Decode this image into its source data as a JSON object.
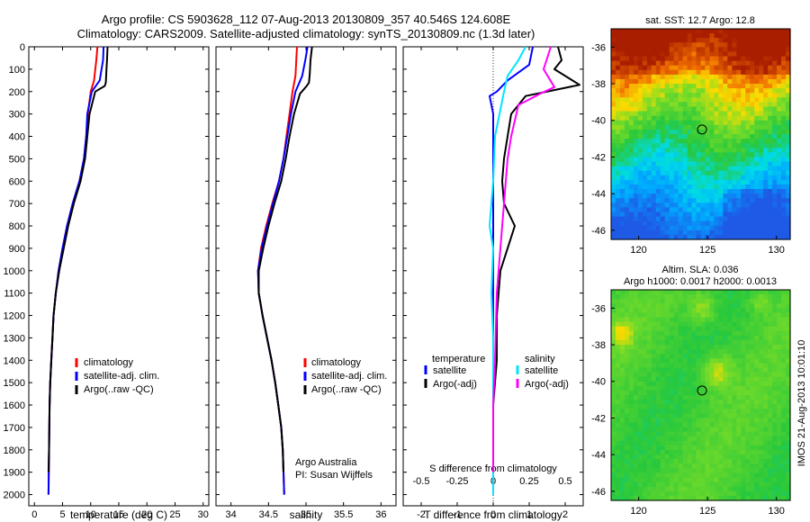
{
  "header": {
    "title_line1": "Argo profile: CS 5903628_112 07-Aug-2013 20130809_357 40.546S 124.608E",
    "title_line2": "Climatology: CARS2009. Satellite-adjusted climatology: synTS_20130809.nc (1.3d later)"
  },
  "side_label": "IMOS 21-Aug-2013 10:01:10",
  "colors": {
    "climatology": "#ff0000",
    "satellite": "#0000ff",
    "argo": "#000000",
    "sat_salinity": "#00e5ff",
    "argo_salinity_adj": "#ff00ff"
  },
  "chart_data": [
    {
      "name": "temperature-profile",
      "type": "line",
      "xlabel": "temperature (deg C)",
      "xlim": [
        -1,
        31
      ],
      "ylim": [
        0,
        2050
      ],
      "x_ticks": [
        0,
        5,
        10,
        15,
        20,
        25,
        30
      ],
      "y_ticks": [
        0,
        100,
        200,
        300,
        400,
        500,
        600,
        700,
        800,
        900,
        1000,
        1100,
        1200,
        1300,
        1400,
        1500,
        1600,
        1700,
        1800,
        1900,
        2000
      ],
      "legend": [
        "climatology",
        "satellite-adj. clim.",
        "Argo(..raw -QC)"
      ],
      "series": [
        {
          "name": "climatology",
          "color": "#ff0000",
          "points": [
            [
              11.2,
              0
            ],
            [
              11.0,
              60
            ],
            [
              10.6,
              150
            ],
            [
              10.0,
              200
            ],
            [
              9.5,
              300
            ],
            [
              9.2,
              400
            ],
            [
              8.8,
              500
            ],
            [
              8.0,
              600
            ],
            [
              6.8,
              700
            ],
            [
              5.8,
              800
            ],
            [
              5.0,
              900
            ],
            [
              4.3,
              1000
            ],
            [
              3.8,
              1100
            ],
            [
              3.4,
              1200
            ],
            [
              3.2,
              1300
            ],
            [
              3.0,
              1400
            ],
            [
              2.8,
              1500
            ],
            [
              2.7,
              1600
            ],
            [
              2.6,
              1800
            ],
            [
              2.5,
              2000
            ]
          ]
        },
        {
          "name": "satellite-adj. clim.",
          "color": "#0000ff",
          "points": [
            [
              12.3,
              0
            ],
            [
              12.2,
              60
            ],
            [
              11.6,
              150
            ],
            [
              10.2,
              200
            ],
            [
              9.4,
              300
            ],
            [
              9.2,
              400
            ],
            [
              8.8,
              500
            ],
            [
              8.0,
              600
            ],
            [
              6.8,
              700
            ],
            [
              5.8,
              800
            ],
            [
              5.0,
              900
            ],
            [
              4.3,
              1000
            ],
            [
              3.8,
              1100
            ],
            [
              3.4,
              1200
            ],
            [
              3.2,
              1300
            ],
            [
              3.0,
              1400
            ],
            [
              2.8,
              1500
            ],
            [
              2.7,
              1600
            ],
            [
              2.6,
              1800
            ],
            [
              2.5,
              2000
            ]
          ]
        },
        {
          "name": "Argo(..raw -QC)",
          "color": "#000000",
          "points": [
            [
              13.0,
              0
            ],
            [
              12.9,
              60
            ],
            [
              12.8,
              100
            ],
            [
              12.7,
              160
            ],
            [
              12.5,
              175
            ],
            [
              10.8,
              200
            ],
            [
              9.8,
              300
            ],
            [
              9.4,
              400
            ],
            [
              9.0,
              500
            ],
            [
              8.2,
              600
            ],
            [
              7.0,
              700
            ],
            [
              6.0,
              800
            ],
            [
              5.2,
              900
            ],
            [
              4.4,
              1000
            ],
            [
              3.8,
              1100
            ],
            [
              3.4,
              1200
            ],
            [
              3.2,
              1300
            ],
            [
              3.0,
              1400
            ],
            [
              2.8,
              1500
            ],
            [
              2.7,
              1600
            ],
            [
              2.6,
              1800
            ],
            [
              2.5,
              1900
            ]
          ]
        }
      ]
    },
    {
      "name": "salinity-profile",
      "type": "line",
      "xlabel": "salinity",
      "xlim": [
        33.8,
        36.2
      ],
      "ylim": [
        0,
        2050
      ],
      "x_ticks": [
        34,
        34.5,
        35,
        35.5,
        36
      ],
      "legend": [
        "climatology",
        "satellite-adj. clim.",
        "Argo(..raw -QC)"
      ],
      "annotations": [
        "Argo Australia",
        "PI: Susan Wijffels"
      ],
      "series": [
        {
          "name": "climatology",
          "color": "#ff0000",
          "points": [
            [
              34.88,
              0
            ],
            [
              34.87,
              60
            ],
            [
              34.86,
              130
            ],
            [
              34.82,
              200
            ],
            [
              34.78,
              300
            ],
            [
              34.74,
              400
            ],
            [
              34.7,
              500
            ],
            [
              34.64,
              600
            ],
            [
              34.55,
              700
            ],
            [
              34.47,
              800
            ],
            [
              34.4,
              900
            ],
            [
              34.36,
              1000
            ],
            [
              34.37,
              1100
            ],
            [
              34.42,
              1200
            ],
            [
              34.48,
              1300
            ],
            [
              34.54,
              1400
            ],
            [
              34.59,
              1500
            ],
            [
              34.63,
              1600
            ],
            [
              34.67,
              1700
            ],
            [
              34.69,
              1800
            ],
            [
              34.7,
              1900
            ],
            [
              34.71,
              2000
            ]
          ]
        },
        {
          "name": "satellite-adj. clim.",
          "color": "#0000ff",
          "points": [
            [
              35.02,
              0
            ],
            [
              34.99,
              60
            ],
            [
              34.95,
              130
            ],
            [
              34.86,
              200
            ],
            [
              34.8,
              300
            ],
            [
              34.75,
              400
            ],
            [
              34.7,
              500
            ],
            [
              34.64,
              600
            ],
            [
              34.56,
              700
            ],
            [
              34.48,
              800
            ],
            [
              34.41,
              900
            ],
            [
              34.36,
              1000
            ],
            [
              34.37,
              1100
            ],
            [
              34.42,
              1200
            ],
            [
              34.48,
              1300
            ],
            [
              34.54,
              1400
            ],
            [
              34.59,
              1500
            ],
            [
              34.63,
              1600
            ],
            [
              34.67,
              1700
            ],
            [
              34.69,
              1800
            ],
            [
              34.7,
              1900
            ],
            [
              34.71,
              2000
            ]
          ]
        },
        {
          "name": "Argo(..raw -QC)",
          "color": "#000000",
          "points": [
            [
              35.08,
              0
            ],
            [
              35.06,
              60
            ],
            [
              35.05,
              120
            ],
            [
              35.04,
              160
            ],
            [
              35.01,
              175
            ],
            [
              34.92,
              210
            ],
            [
              34.84,
              300
            ],
            [
              34.78,
              400
            ],
            [
              34.73,
              500
            ],
            [
              34.67,
              600
            ],
            [
              34.58,
              700
            ],
            [
              34.5,
              800
            ],
            [
              34.43,
              900
            ],
            [
              34.37,
              1000
            ],
            [
              34.37,
              1100
            ],
            [
              34.42,
              1200
            ],
            [
              34.48,
              1300
            ],
            [
              34.54,
              1400
            ],
            [
              34.59,
              1500
            ],
            [
              34.63,
              1600
            ],
            [
              34.67,
              1700
            ],
            [
              34.69,
              1800
            ],
            [
              34.7,
              1900
            ]
          ]
        }
      ]
    },
    {
      "name": "difference-profile",
      "type": "line",
      "xlabel": "T difference from climatology",
      "xlabel_top": "S difference from climatology",
      "xlim": [
        -2.5,
        2.5
      ],
      "ylim": [
        0,
        2050
      ],
      "x_ticks": [
        -2,
        -1,
        0,
        1,
        2
      ],
      "x_ticks_top_labels": [
        "-0.5",
        "-0.25",
        "0",
        "0.25",
        "0.5"
      ],
      "x_ticks_top_positions": [
        -2,
        -1,
        0,
        1,
        2
      ],
      "legend_title_left": "temperature",
      "legend_title_right": "salinity",
      "legend_left": [
        "satellite",
        "Argo(-adj)"
      ],
      "legend_right": [
        "satellite",
        "Argo(-adj)"
      ],
      "series": [
        {
          "name": "temperature satellite",
          "color": "#0000ff",
          "points": [
            [
              1.1,
              0
            ],
            [
              1.0,
              80
            ],
            [
              0.4,
              150
            ],
            [
              0.1,
              200
            ],
            [
              -0.1,
              220
            ],
            [
              0.0,
              300
            ],
            [
              0.0,
              500
            ],
            [
              0.0,
              700
            ],
            [
              0.0,
              900
            ],
            [
              0.0,
              1200
            ],
            [
              0.0,
              1600
            ],
            [
              0.0,
              2000
            ]
          ]
        },
        {
          "name": "temperature Argo(-adj)",
          "color": "#000000",
          "points": [
            [
              1.8,
              0
            ],
            [
              1.9,
              60
            ],
            [
              1.7,
              100
            ],
            [
              2.4,
              170
            ],
            [
              0.9,
              220
            ],
            [
              0.5,
              300
            ],
            [
              0.3,
              500
            ],
            [
              0.25,
              600
            ],
            [
              0.3,
              700
            ],
            [
              0.6,
              800
            ],
            [
              0.4,
              900
            ],
            [
              0.2,
              1000
            ],
            [
              0.1,
              1200
            ],
            [
              0.1,
              1400
            ],
            [
              0.0,
              1600
            ],
            [
              0.0,
              1900
            ]
          ]
        },
        {
          "name": "salinity satellite",
          "color": "#00e5ff",
          "points": [
            [
              0.9,
              0
            ],
            [
              0.7,
              60
            ],
            [
              0.4,
              130
            ],
            [
              0.3,
              200
            ],
            [
              0.05,
              400
            ],
            [
              0.0,
              600
            ],
            [
              -0.1,
              800
            ],
            [
              0.0,
              900
            ],
            [
              -0.05,
              1100
            ],
            [
              0.0,
              1300
            ],
            [
              0.0,
              1500
            ],
            [
              0.0,
              2000
            ]
          ]
        },
        {
          "name": "salinity Argo(-adj)",
          "color": "#ff00ff",
          "points": [
            [
              1.6,
              0
            ],
            [
              1.4,
              100
            ],
            [
              1.7,
              180
            ],
            [
              1.3,
              210
            ],
            [
              0.7,
              260
            ],
            [
              0.5,
              400
            ],
            [
              0.4,
              500
            ],
            [
              0.3,
              700
            ],
            [
              0.2,
              900
            ],
            [
              0.1,
              1100
            ],
            [
              0.05,
              1400
            ],
            [
              0.0,
              1600
            ],
            [
              0.0,
              1900
            ]
          ]
        }
      ]
    },
    {
      "name": "sst-map",
      "type": "heatmap",
      "title": "sat. SST: 12.7 Argo: 12.8",
      "xlim": [
        118,
        131
      ],
      "ylim": [
        -46.5,
        -35
      ],
      "x_ticks": [
        120,
        125,
        130
      ],
      "y_ticks": [
        -36,
        -38,
        -40,
        -42,
        -44,
        -46
      ],
      "marker": {
        "lon": 124.6,
        "lat": -40.5
      }
    },
    {
      "name": "sla-map",
      "type": "heatmap",
      "title": "Altim. SLA: 0.036",
      "subtitle": "Argo h1000: 0.0017 h2000: 0.0013",
      "xlim": [
        118,
        131
      ],
      "ylim": [
        -46.5,
        -35
      ],
      "x_ticks": [
        120,
        125,
        130
      ],
      "y_ticks": [
        -36,
        -38,
        -40,
        -42,
        -44,
        -46
      ],
      "marker": {
        "lon": 124.6,
        "lat": -40.5
      }
    }
  ]
}
